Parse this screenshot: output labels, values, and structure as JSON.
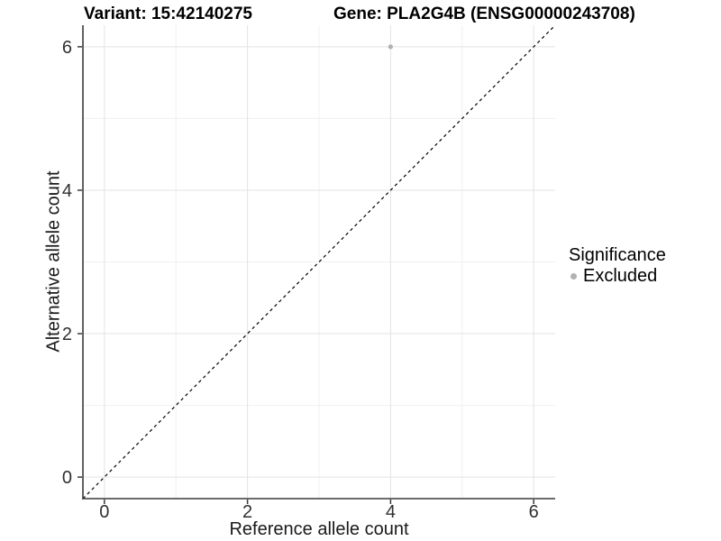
{
  "chart_data": {
    "type": "scatter",
    "titles": {
      "left": "Variant: 15:42140275",
      "right": "Gene: PLA2G4B (ENSG00000243708)"
    },
    "xlabel": "Reference allele count",
    "ylabel": "Alternative allele count",
    "xlim": [
      -0.3,
      6.3
    ],
    "ylim": [
      -0.3,
      6.3
    ],
    "x_major_ticks": [
      0,
      2,
      4,
      6
    ],
    "y_major_ticks": [
      0,
      2,
      4,
      6
    ],
    "x_minor_gridlines": [
      1,
      3,
      5
    ],
    "y_minor_gridlines": [
      1,
      3,
      5
    ],
    "grid": "on",
    "series": [
      {
        "name": "Excluded",
        "color": "#b1b1b1",
        "points": [
          {
            "x": 4,
            "y": 6
          }
        ]
      }
    ],
    "reference_line": {
      "slope": 1,
      "intercept": 0,
      "style": "dashed",
      "color": "#000000"
    },
    "legend": {
      "title": "Significance",
      "position": "right",
      "entries": [
        {
          "label": "Excluded",
          "color": "#b1b1b1"
        }
      ]
    }
  },
  "colors": {
    "background": "#ffffff",
    "axis_line": "#3a3a3a",
    "tick_mark": "#3a3a3a",
    "tick_label": "#303030",
    "grid_major": "#e3e3e3",
    "grid_minor": "#f0f0f0"
  }
}
